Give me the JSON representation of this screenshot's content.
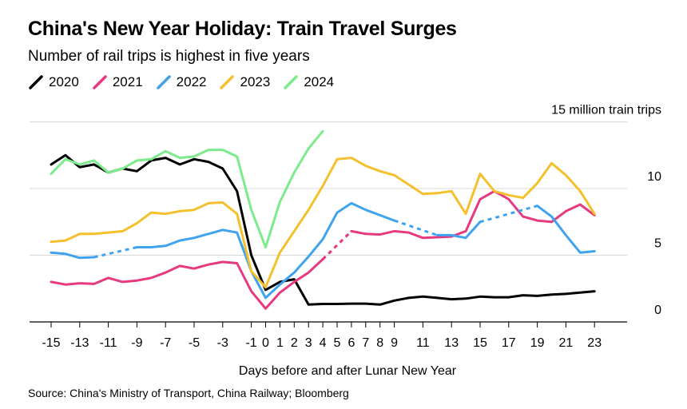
{
  "title": "China's New Year Holiday: Train Travel Surges",
  "subtitle": "Number of rail trips is highest in five years",
  "source": "Source: China's Ministry of Transport, China Railway; Bloomberg",
  "chart_data": {
    "type": "line",
    "xlabel": "Days before and after Lunar New Year",
    "ylabel": "",
    "unit_label": "15 million train trips",
    "xlim": [
      -16,
      26
    ],
    "ylim": [
      0,
      15
    ],
    "x_ticks": [
      -15,
      -13,
      -11,
      -9,
      -7,
      -5,
      -3,
      -1,
      0,
      1,
      2,
      3,
      4,
      5,
      6,
      7,
      8,
      9,
      11,
      13,
      15,
      17,
      19,
      21,
      23
    ],
    "y_ticks": [
      {
        "value": 0,
        "label": "0"
      },
      {
        "value": 5,
        "label": "5"
      },
      {
        "value": 10,
        "label": "10"
      },
      {
        "value": 15,
        "label": "15 million train trips"
      }
    ],
    "grid": true,
    "legend_position": "top-left",
    "series": [
      {
        "name": "2020",
        "color": "#000000",
        "segments": [
          {
            "dashed": false,
            "points": [
              [
                -15,
                11.8
              ],
              [
                -14,
                12.5
              ],
              [
                -13,
                11.6
              ],
              [
                -12,
                11.8
              ],
              [
                -11,
                11.2
              ],
              [
                -10,
                11.5
              ],
              [
                -9,
                11.3
              ],
              [
                -8,
                12.1
              ],
              [
                -7,
                12.3
              ],
              [
                -6,
                11.8
              ],
              [
                -5,
                12.2
              ],
              [
                -4,
                12.0
              ],
              [
                -3,
                11.5
              ],
              [
                -2,
                9.8
              ],
              [
                -1,
                5.0
              ],
              [
                0,
                2.4
              ],
              [
                1,
                3.0
              ],
              [
                2,
                3.2
              ],
              [
                3,
                1.3
              ],
              [
                4,
                1.35
              ],
              [
                5,
                1.35
              ],
              [
                6,
                1.37
              ],
              [
                7,
                1.37
              ],
              [
                8,
                1.3
              ],
              [
                9,
                1.6
              ],
              [
                10,
                1.8
              ],
              [
                11,
                1.9
              ],
              [
                12,
                1.8
              ],
              [
                13,
                1.7
              ],
              [
                14,
                1.75
              ],
              [
                15,
                1.9
              ],
              [
                16,
                1.85
              ],
              [
                17,
                1.85
              ],
              [
                18,
                2.0
              ],
              [
                19,
                1.95
              ],
              [
                20,
                2.05
              ],
              [
                21,
                2.1
              ],
              [
                22,
                2.2
              ],
              [
                23,
                2.3
              ]
            ]
          }
        ]
      },
      {
        "name": "2021",
        "color": "#e6397f",
        "segments": [
          {
            "dashed": false,
            "points": [
              [
                -15,
                3.0
              ],
              [
                -14,
                2.8
              ],
              [
                -13,
                2.9
              ],
              [
                -12,
                2.85
              ],
              [
                -11,
                3.3
              ],
              [
                -10,
                3.0
              ],
              [
                -9,
                3.1
              ],
              [
                -8,
                3.3
              ],
              [
                -7,
                3.7
              ],
              [
                -6,
                4.2
              ],
              [
                -5,
                4.0
              ],
              [
                -4,
                4.3
              ],
              [
                -3,
                4.5
              ],
              [
                -2,
                4.4
              ],
              [
                -1,
                2.3
              ],
              [
                0,
                1.0
              ],
              [
                1,
                2.2
              ],
              [
                2,
                3.0
              ],
              [
                3,
                3.7
              ],
              [
                4,
                4.7
              ]
            ]
          },
          {
            "dashed": true,
            "points": [
              [
                4,
                4.7
              ],
              [
                6,
                6.8
              ]
            ]
          },
          {
            "dashed": false,
            "points": [
              [
                6,
                6.8
              ],
              [
                7,
                6.6
              ],
              [
                8,
                6.55
              ],
              [
                9,
                6.8
              ],
              [
                10,
                6.7
              ],
              [
                11,
                6.3
              ],
              [
                12,
                6.35
              ],
              [
                13,
                6.4
              ],
              [
                14,
                6.8
              ],
              [
                15,
                9.2
              ],
              [
                16,
                9.8
              ],
              [
                17,
                9.2
              ],
              [
                18,
                7.9
              ],
              [
                19,
                7.6
              ],
              [
                20,
                7.5
              ],
              [
                21,
                8.3
              ],
              [
                22,
                8.8
              ],
              [
                23,
                8.0
              ]
            ]
          }
        ]
      },
      {
        "name": "2022",
        "color": "#3fa3ee",
        "segments": [
          {
            "dashed": false,
            "points": [
              [
                -15,
                5.2
              ],
              [
                -14,
                5.1
              ],
              [
                -13,
                4.8
              ],
              [
                -12,
                4.85
              ]
            ]
          },
          {
            "dashed": true,
            "points": [
              [
                -12,
                4.85
              ],
              [
                -9,
                5.6
              ]
            ]
          },
          {
            "dashed": false,
            "points": [
              [
                -9,
                5.6
              ],
              [
                -8,
                5.6
              ],
              [
                -7,
                5.7
              ],
              [
                -6,
                6.1
              ],
              [
                -5,
                6.3
              ],
              [
                -4,
                6.6
              ],
              [
                -3,
                6.9
              ],
              [
                -2,
                6.7
              ],
              [
                -1,
                3.8
              ],
              [
                0,
                1.8
              ],
              [
                1,
                2.8
              ],
              [
                2,
                3.7
              ],
              [
                3,
                4.9
              ],
              [
                4,
                6.2
              ],
              [
                5,
                8.2
              ],
              [
                6,
                8.9
              ],
              [
                7,
                8.4
              ],
              [
                8,
                8.0
              ],
              [
                9,
                7.6
              ]
            ]
          },
          {
            "dashed": true,
            "points": [
              [
                9,
                7.6
              ],
              [
                12,
                6.5
              ]
            ]
          },
          {
            "dashed": false,
            "points": [
              [
                12,
                6.5
              ],
              [
                13,
                6.5
              ],
              [
                14,
                6.3
              ],
              [
                15,
                7.5
              ]
            ]
          },
          {
            "dashed": true,
            "points": [
              [
                15,
                7.5
              ],
              [
                19,
                8.7
              ]
            ]
          },
          {
            "dashed": false,
            "points": [
              [
                19,
                8.7
              ],
              [
                20,
                7.9
              ],
              [
                21,
                6.5
              ],
              [
                22,
                5.2
              ],
              [
                23,
                5.3
              ]
            ]
          }
        ]
      },
      {
        "name": "2023",
        "color": "#f5c02d",
        "segments": [
          {
            "dashed": false,
            "points": [
              [
                -15,
                6.0
              ],
              [
                -14,
                6.1
              ],
              [
                -13,
                6.6
              ],
              [
                -12,
                6.6
              ],
              [
                -11,
                6.7
              ],
              [
                -10,
                6.8
              ],
              [
                -9,
                7.4
              ],
              [
                -8,
                8.2
              ],
              [
                -7,
                8.1
              ],
              [
                -6,
                8.3
              ],
              [
                -5,
                8.4
              ],
              [
                -4,
                8.9
              ],
              [
                -3,
                8.95
              ],
              [
                -2,
                8.1
              ],
              [
                -1,
                3.8
              ],
              [
                0,
                2.6
              ],
              [
                1,
                5.2
              ],
              [
                2,
                6.8
              ],
              [
                3,
                8.4
              ],
              [
                4,
                10.2
              ],
              [
                5,
                12.2
              ],
              [
                6,
                12.3
              ],
              [
                7,
                11.7
              ],
              [
                8,
                11.3
              ],
              [
                9,
                11.0
              ],
              [
                10,
                10.3
              ],
              [
                11,
                9.6
              ],
              [
                12,
                9.65
              ],
              [
                13,
                9.8
              ],
              [
                14,
                8.1
              ],
              [
                15,
                11.1
              ],
              [
                16,
                9.8
              ],
              [
                17,
                9.5
              ],
              [
                18,
                9.3
              ],
              [
                19,
                10.4
              ],
              [
                20,
                11.9
              ],
              [
                21,
                11.0
              ],
              [
                22,
                9.8
              ],
              [
                23,
                8.1
              ]
            ]
          }
        ]
      },
      {
        "name": "2024",
        "color": "#7ceb8b",
        "segments": [
          {
            "dashed": false,
            "points": [
              [
                -15,
                11.1
              ],
              [
                -14,
                12.2
              ],
              [
                -13,
                11.8
              ],
              [
                -12,
                12.1
              ],
              [
                -11,
                11.2
              ],
              [
                -10,
                11.5
              ],
              [
                -9,
                12.1
              ],
              [
                -8,
                12.2
              ],
              [
                -7,
                12.8
              ],
              [
                -6,
                12.3
              ],
              [
                -5,
                12.4
              ],
              [
                -4,
                12.9
              ],
              [
                -3,
                12.9
              ],
              [
                -2,
                12.4
              ],
              [
                -1,
                8.4
              ],
              [
                0,
                5.6
              ],
              [
                1,
                9.0
              ],
              [
                2,
                11.2
              ],
              [
                3,
                13.0
              ],
              [
                4,
                14.3
              ]
            ]
          }
        ]
      }
    ]
  }
}
